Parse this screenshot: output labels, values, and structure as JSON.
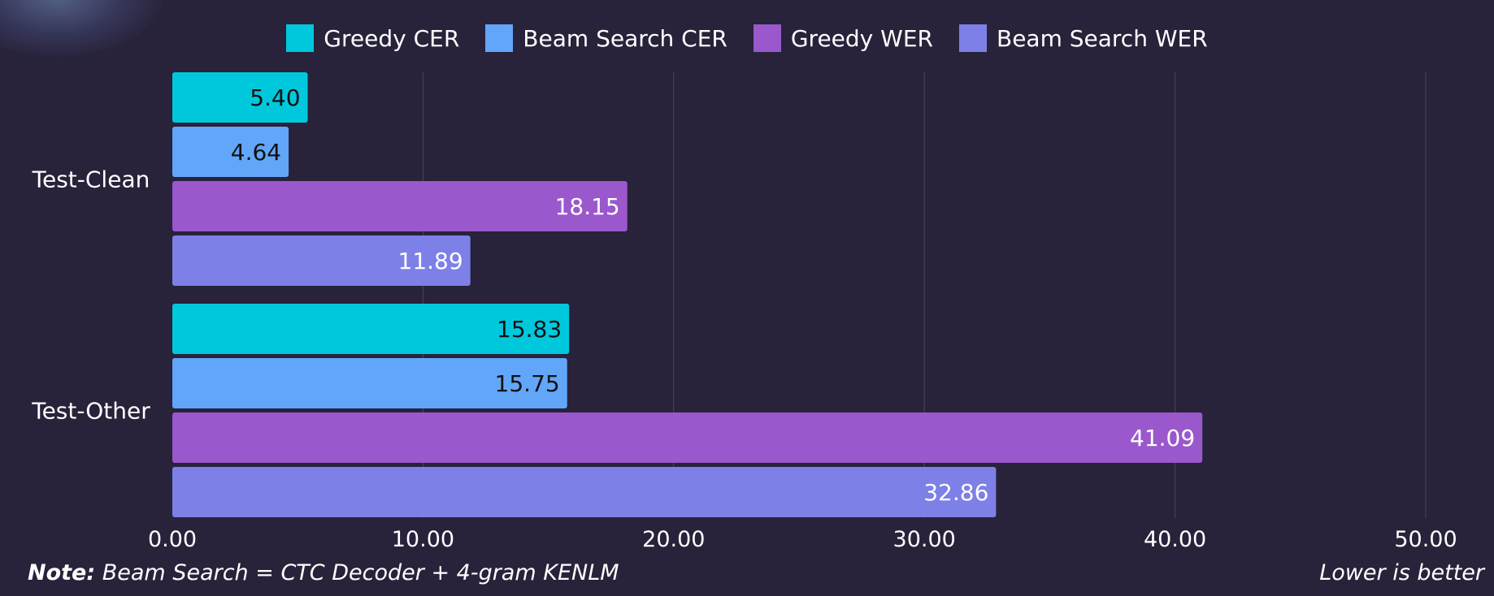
{
  "chart_data": {
    "type": "bar",
    "orientation": "horizontal",
    "categories": [
      "Test-Clean",
      "Test-Other"
    ],
    "series": [
      {
        "name": "Greedy CER",
        "values": [
          5.4,
          15.83
        ],
        "color": "#00c8dc",
        "label_color": "#111111"
      },
      {
        "name": "Beam Search CER",
        "values": [
          4.64,
          15.75
        ],
        "color": "#62a6fa",
        "label_color": "#111111"
      },
      {
        "name": "Greedy WER",
        "values": [
          18.15,
          41.09
        ],
        "color": "#9a58cc",
        "label_color": "#ffffff"
      },
      {
        "name": "Beam Search WER",
        "values": [
          11.89,
          32.86
        ],
        "color": "#7d80e6",
        "label_color": "#ffffff"
      }
    ],
    "xlim": [
      0,
      50
    ],
    "xticks": [
      "0.00",
      "10.00",
      "20.00",
      "30.00",
      "40.00",
      "50.00"
    ],
    "xtick_values": [
      0,
      10,
      20,
      30,
      40,
      50
    ],
    "title": "",
    "xlabel": "",
    "ylabel": "",
    "grid": "vertical",
    "legend_position": "top-center"
  },
  "footer": {
    "note_label": "Note:",
    "note_text": " Beam Search = CTC Decoder + 4-gram KENLM",
    "right_text": "Lower is better"
  },
  "colors": {
    "background": "#28223a",
    "grid": "#4a4560",
    "text": "#ffffff"
  }
}
